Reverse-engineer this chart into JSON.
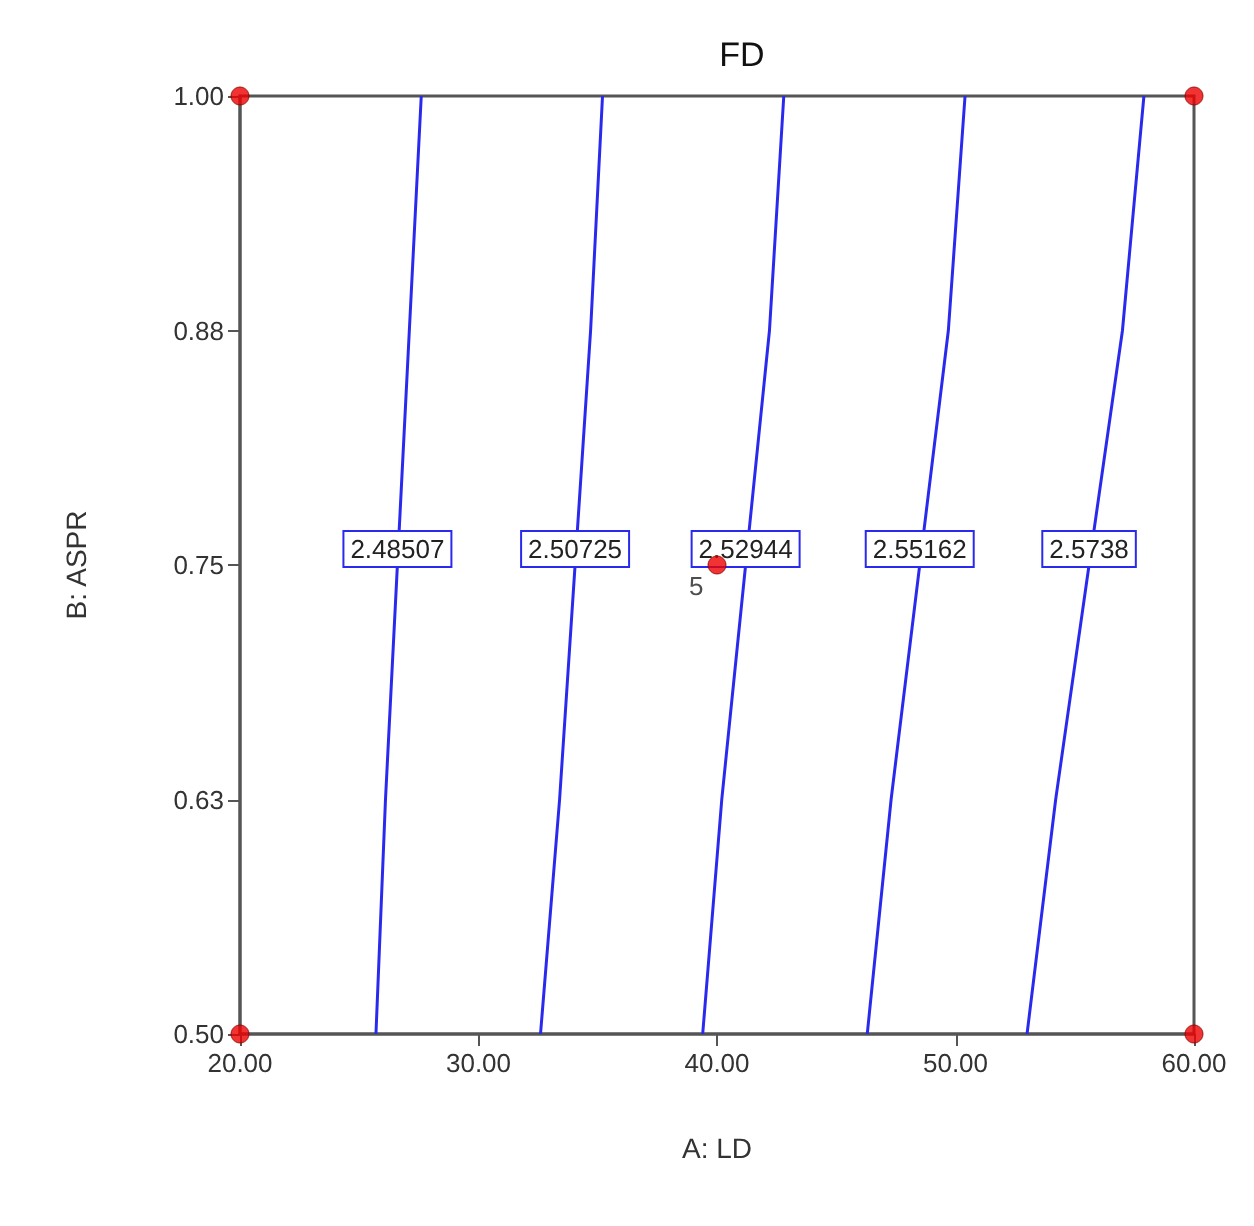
{
  "chart_data": {
    "type": "line",
    "title": "FD",
    "xlabel": "A: LD",
    "ylabel": "B: ASPR",
    "xlim": [
      20,
      60
    ],
    "ylim": [
      0.5,
      1
    ],
    "xticks": [
      {
        "value": 20,
        "label": "20.00"
      },
      {
        "value": 30,
        "label": "30.00"
      },
      {
        "value": 40,
        "label": "40.00"
      },
      {
        "value": 50,
        "label": "50.00"
      },
      {
        "value": 60,
        "label": "60.00"
      }
    ],
    "yticks": [
      {
        "value": 0.5,
        "label": "0.50"
      },
      {
        "value": 0.625,
        "label": "0.63"
      },
      {
        "value": 0.75,
        "label": "0.75"
      },
      {
        "value": 0.875,
        "label": "0.88"
      },
      {
        "value": 1,
        "label": "1.00"
      }
    ],
    "legend": false,
    "grid": false,
    "series": [
      {
        "name": "2.48507",
        "color": "#2a2aee",
        "x": [
          25.7,
          26.1,
          27.1,
          27.6
        ],
        "values": [
          0.5,
          0.625,
          0.875,
          1
        ]
      },
      {
        "name": "2.50725",
        "color": "#2a2aee",
        "x": [
          32.6,
          33.4,
          34.7,
          35.2
        ],
        "values": [
          0.5,
          0.625,
          0.875,
          1
        ]
      },
      {
        "name": "2.52944",
        "color": "#2a2aee",
        "x": [
          39.4,
          40.2,
          42.2,
          42.8
        ],
        "values": [
          0.5,
          0.625,
          0.875,
          1
        ]
      },
      {
        "name": "2.55162",
        "color": "#2a2aee",
        "x": [
          46.3,
          47.3,
          49.7,
          50.4
        ],
        "values": [
          0.5,
          0.625,
          0.875,
          1
        ]
      },
      {
        "name": "2.5738",
        "color": "#2a2aee",
        "x": [
          53.0,
          54.2,
          57.0,
          57.9
        ],
        "values": [
          0.5,
          0.625,
          0.875,
          1
        ]
      },
      {
        "type": "scatter",
        "marker": "circle",
        "color": "#ee0000",
        "x": [
          20,
          60,
          40,
          20,
          60
        ],
        "values": [
          0.5,
          0.5,
          0.75,
          1,
          1
        ]
      }
    ],
    "annotations": [
      {
        "text": "5",
        "x": 40,
        "y": 0.75
      }
    ]
  }
}
